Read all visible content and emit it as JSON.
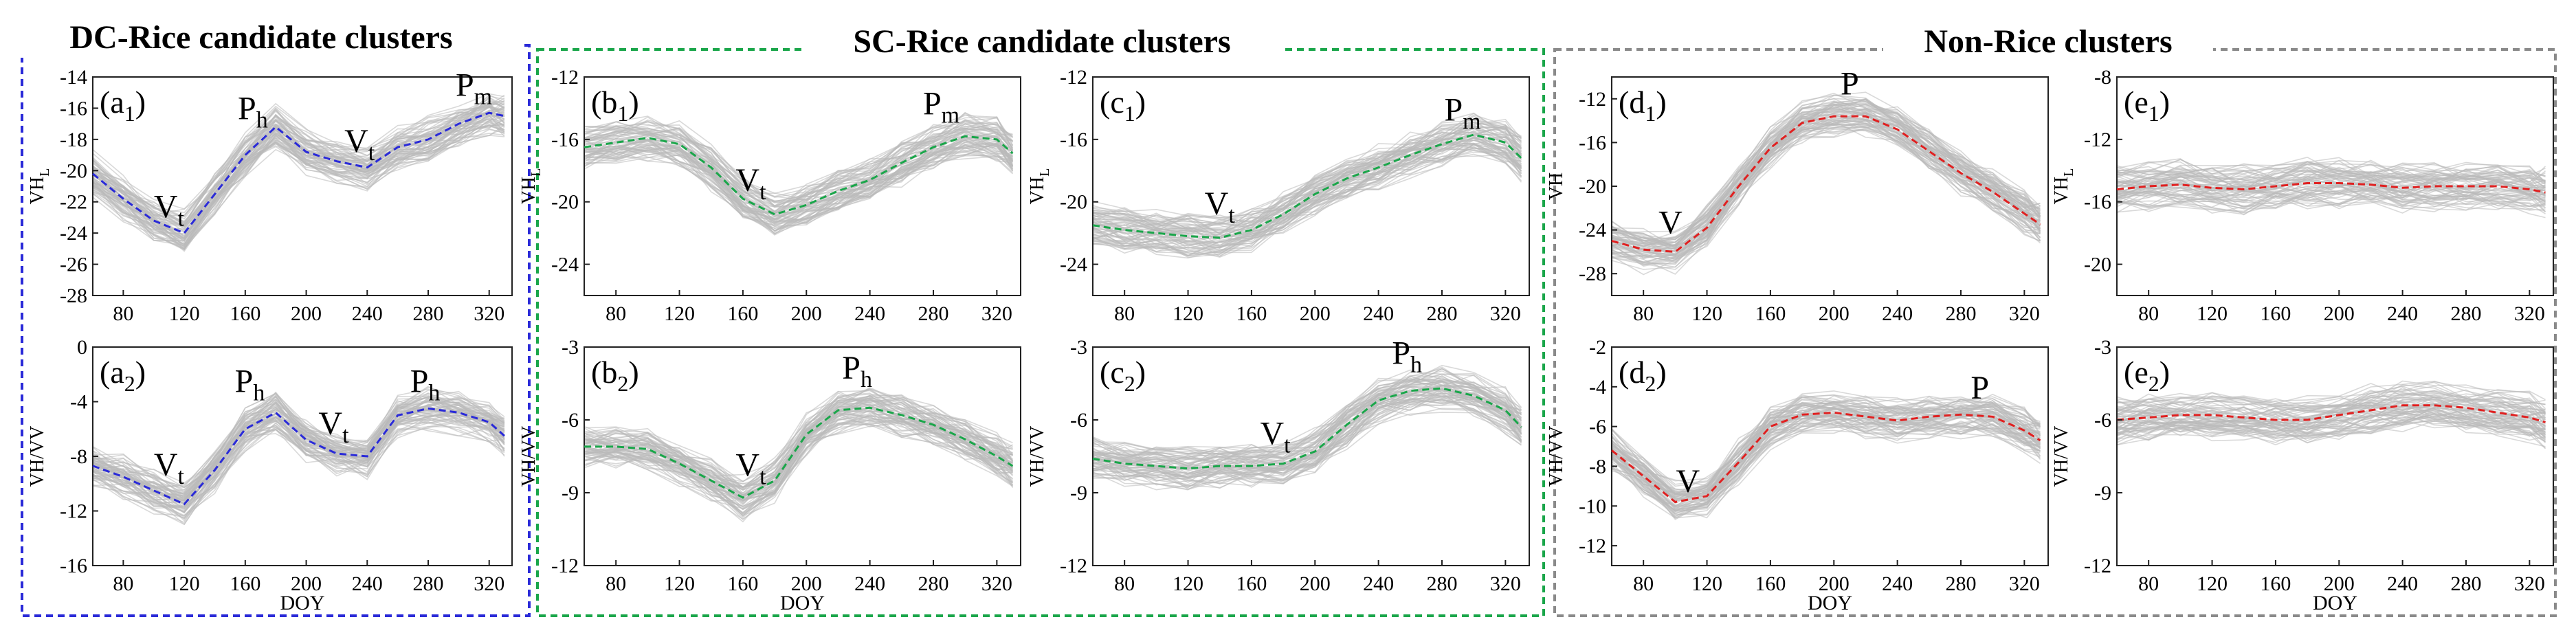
{
  "groups": [
    {
      "title": "DC-Rice candidate clusters",
      "color": "#2a2ad8"
    },
    {
      "title": "SC-Rice candidate clusters",
      "color": "#1aa64a"
    },
    {
      "title": "Non-Rice clusters",
      "color": "#8a8a8a"
    }
  ],
  "chart_data": [
    {
      "type": "line",
      "panel": "(a1)",
      "label_main": "(a",
      "label_sub": "1",
      "label_close": ")",
      "ylabel_main": "VH",
      "ylabel_sub": "L",
      "xlabel": "",
      "x": [
        60,
        80,
        100,
        120,
        140,
        160,
        180,
        200,
        220,
        240,
        260,
        280,
        300,
        320,
        330
      ],
      "xticks": [
        80,
        120,
        160,
        200,
        240,
        280,
        320
      ],
      "xlim": [
        60,
        335
      ],
      "ylim": [
        -28,
        -14
      ],
      "yticks": [
        -28,
        -26,
        -24,
        -22,
        -20,
        -18,
        -16,
        -14
      ],
      "series": [
        {
          "values": [
            -20.2,
            -21.8,
            -23.2,
            -24.0,
            -21.5,
            -19.0,
            -17.2,
            -18.8,
            -19.4,
            -19.8,
            -18.5,
            -18.0,
            -17.0,
            -16.3,
            -16.5
          ],
          "color": "#2a2ad8"
        }
      ],
      "annotations": [
        {
          "main": "V",
          "sub": "t",
          "x": 110,
          "y": -23.0
        },
        {
          "main": "P",
          "sub": "h",
          "x": 165,
          "y": -16.7
        },
        {
          "main": "V",
          "sub": "t",
          "x": 235,
          "y": -18.8
        },
        {
          "main": "P",
          "sub": "m",
          "x": 310,
          "y": -15.2
        }
      ]
    },
    {
      "type": "line",
      "panel": "(a2)",
      "label_main": "(a",
      "label_sub": "2",
      "label_close": ")",
      "ylabel_main": "VH/VV",
      "ylabel_sub": "",
      "xlabel": "DOY",
      "x": [
        60,
        80,
        100,
        120,
        140,
        160,
        180,
        200,
        220,
        240,
        260,
        280,
        300,
        320,
        330
      ],
      "xticks": [
        80,
        120,
        160,
        200,
        240,
        280,
        320
      ],
      "xlim": [
        60,
        335
      ],
      "ylim": [
        -16,
        0
      ],
      "yticks": [
        -16,
        -12,
        -8,
        -4,
        0
      ],
      "series": [
        {
          "values": [
            -8.7,
            -9.5,
            -10.5,
            -11.5,
            -9.0,
            -6.0,
            -4.8,
            -6.8,
            -7.8,
            -8.0,
            -5.0,
            -4.5,
            -4.8,
            -5.5,
            -6.5
          ],
          "color": "#2a2ad8"
        }
      ],
      "annotations": [
        {
          "main": "V",
          "sub": "t",
          "x": 110,
          "y": -9.4
        },
        {
          "main": "P",
          "sub": "h",
          "x": 163,
          "y": -3.3
        },
        {
          "main": "V",
          "sub": "t",
          "x": 218,
          "y": -6.4
        },
        {
          "main": "P",
          "sub": "h",
          "x": 278,
          "y": -3.3
        }
      ]
    },
    {
      "type": "line",
      "panel": "(b1)",
      "label_main": "(b",
      "label_sub": "1",
      "label_close": ")",
      "ylabel_main": "VH",
      "ylabel_sub": "L",
      "xlabel": "",
      "x": [
        60,
        80,
        100,
        120,
        140,
        160,
        180,
        200,
        220,
        240,
        260,
        280,
        300,
        320,
        330
      ],
      "xticks": [
        80,
        120,
        160,
        200,
        240,
        280,
        320
      ],
      "xlim": [
        60,
        335
      ],
      "ylim": [
        -26,
        -12
      ],
      "yticks": [
        -24,
        -20,
        -16,
        -12
      ],
      "series": [
        {
          "values": [
            -16.5,
            -16.2,
            -15.9,
            -16.3,
            -17.8,
            -19.8,
            -20.8,
            -20.2,
            -19.3,
            -18.6,
            -17.5,
            -16.5,
            -15.8,
            -16.0,
            -16.9
          ],
          "color": "#1aa64a"
        }
      ],
      "annotations": [
        {
          "main": "V",
          "sub": "t",
          "x": 165,
          "y": -19.3
        },
        {
          "main": "P",
          "sub": "m",
          "x": 285,
          "y": -14.4
        }
      ]
    },
    {
      "type": "line",
      "panel": "(c1)",
      "label_main": "(c",
      "label_sub": "1",
      "label_close": ")",
      "ylabel_main": "VH",
      "ylabel_sub": "L",
      "xlabel": "",
      "x": [
        60,
        80,
        100,
        120,
        140,
        160,
        180,
        200,
        220,
        240,
        260,
        280,
        300,
        320,
        330
      ],
      "xticks": [
        80,
        120,
        160,
        200,
        240,
        280,
        320
      ],
      "xlim": [
        60,
        335
      ],
      "ylim": [
        -26,
        -12
      ],
      "yticks": [
        -24,
        -20,
        -16,
        -12
      ],
      "series": [
        {
          "values": [
            -21.5,
            -21.8,
            -22.0,
            -22.2,
            -22.3,
            -21.8,
            -20.8,
            -19.5,
            -18.5,
            -17.8,
            -17.0,
            -16.3,
            -15.7,
            -16.2,
            -17.2
          ],
          "color": "#1aa64a"
        }
      ],
      "annotations": [
        {
          "main": "V",
          "sub": "t",
          "x": 140,
          "y": -20.8
        },
        {
          "main": "P",
          "sub": "m",
          "x": 293,
          "y": -14.8
        }
      ]
    },
    {
      "type": "line",
      "panel": "(b2)",
      "label_main": "(b",
      "label_sub": "2",
      "label_close": ")",
      "ylabel_main": "VH/VV",
      "ylabel_sub": "",
      "xlabel": "DOY",
      "x": [
        60,
        80,
        100,
        120,
        140,
        160,
        180,
        200,
        220,
        240,
        260,
        280,
        300,
        320,
        330
      ],
      "xticks": [
        80,
        120,
        160,
        200,
        240,
        280,
        320
      ],
      "xlim": [
        60,
        335
      ],
      "ylim": [
        -12,
        -3
      ],
      "yticks": [
        -12,
        -9,
        -6,
        -3
      ],
      "series": [
        {
          "values": [
            -7.1,
            -7.1,
            -7.2,
            -7.8,
            -8.5,
            -9.2,
            -8.5,
            -6.6,
            -5.6,
            -5.5,
            -5.8,
            -6.2,
            -6.8,
            -7.5,
            -7.9
          ],
          "color": "#1aa64a"
        }
      ],
      "annotations": [
        {
          "main": "V",
          "sub": "t",
          "x": 165,
          "y": -8.3
        },
        {
          "main": "P",
          "sub": "h",
          "x": 232,
          "y": -4.3
        }
      ]
    },
    {
      "type": "line",
      "panel": "(c2)",
      "label_main": "(c",
      "label_sub": "2",
      "label_close": ")",
      "ylabel_main": "VH/VV",
      "ylabel_sub": "",
      "xlabel": "",
      "x": [
        60,
        80,
        100,
        120,
        140,
        160,
        180,
        200,
        220,
        240,
        260,
        280,
        300,
        320,
        330
      ],
      "xticks": [
        80,
        120,
        160,
        200,
        240,
        280,
        320
      ],
      "xlim": [
        60,
        335
      ],
      "ylim": [
        -12,
        -3
      ],
      "yticks": [
        -12,
        -9,
        -6,
        -3
      ],
      "series": [
        {
          "values": [
            -7.6,
            -7.8,
            -7.9,
            -8.0,
            -7.9,
            -7.9,
            -7.8,
            -7.3,
            -6.2,
            -5.2,
            -4.8,
            -4.7,
            -5.0,
            -5.6,
            -6.3
          ],
          "color": "#1aa64a"
        }
      ],
      "annotations": [
        {
          "main": "V",
          "sub": "t",
          "x": 175,
          "y": -7.0
        },
        {
          "main": "P",
          "sub": "h",
          "x": 258,
          "y": -3.7
        }
      ]
    },
    {
      "type": "line",
      "panel": "(d1)",
      "label_main": "(d",
      "label_sub": "1",
      "label_close": ")",
      "ylabel_main": "VH",
      "ylabel_sub": "",
      "xlabel": "",
      "x": [
        60,
        80,
        100,
        120,
        140,
        160,
        180,
        200,
        220,
        240,
        260,
        280,
        300,
        320,
        330
      ],
      "xticks": [
        80,
        120,
        160,
        200,
        240,
        280,
        320
      ],
      "xlim": [
        60,
        335
      ],
      "ylim": [
        -30,
        -10
      ],
      "yticks": [
        -28,
        -24,
        -20,
        -16,
        -12
      ],
      "series": [
        {
          "values": [
            -25.0,
            -25.8,
            -26.0,
            -23.8,
            -20.0,
            -16.5,
            -14.2,
            -13.6,
            -13.6,
            -14.8,
            -16.8,
            -18.8,
            -20.5,
            -22.5,
            -23.5
          ],
          "color": "#e02020"
        }
      ],
      "annotations": [
        {
          "main": "V",
          "sub": "",
          "x": 97,
          "y": -24.3
        },
        {
          "main": "P",
          "sub": "",
          "x": 210,
          "y": -11.6
        }
      ]
    },
    {
      "type": "line",
      "panel": "(e1)",
      "label_main": "(e",
      "label_sub": "1",
      "label_close": ")",
      "ylabel_main": "VH",
      "ylabel_sub": "L",
      "xlabel": "",
      "x": [
        60,
        80,
        100,
        120,
        140,
        160,
        180,
        200,
        220,
        240,
        260,
        280,
        300,
        320,
        330
      ],
      "xticks": [
        80,
        120,
        160,
        200,
        240,
        280,
        320
      ],
      "xlim": [
        60,
        335
      ],
      "ylim": [
        -22,
        -8
      ],
      "yticks": [
        -20,
        -16,
        -12,
        -8
      ],
      "series": [
        {
          "values": [
            -15.2,
            -15.0,
            -14.9,
            -15.1,
            -15.2,
            -15.0,
            -14.8,
            -14.8,
            -14.9,
            -15.1,
            -15.0,
            -15.0,
            -15.0,
            -15.2,
            -15.4
          ],
          "color": "#e02020"
        }
      ],
      "annotations": []
    },
    {
      "type": "line",
      "panel": "(d2)",
      "label_main": "(d",
      "label_sub": "2",
      "label_close": ")",
      "ylabel_main": "VH/VV",
      "ylabel_sub": "",
      "xlabel": "DOY",
      "x": [
        60,
        80,
        100,
        120,
        140,
        160,
        180,
        200,
        220,
        240,
        260,
        280,
        300,
        320,
        330
      ],
      "xticks": [
        80,
        120,
        160,
        200,
        240,
        280,
        320
      ],
      "xlim": [
        60,
        335
      ],
      "ylim": [
        -13,
        -2
      ],
      "yticks": [
        -12,
        -10,
        -8,
        -6,
        -4,
        -2
      ],
      "series": [
        {
          "values": [
            -7.2,
            -8.5,
            -9.8,
            -9.5,
            -7.8,
            -6.0,
            -5.4,
            -5.3,
            -5.5,
            -5.7,
            -5.5,
            -5.4,
            -5.5,
            -6.2,
            -6.7
          ],
          "color": "#e02020"
        }
      ],
      "annotations": [
        {
          "main": "V",
          "sub": "",
          "x": 108,
          "y": -9.3
        },
        {
          "main": "P",
          "sub": "",
          "x": 292,
          "y": -4.6
        }
      ]
    },
    {
      "type": "line",
      "panel": "(e2)",
      "label_main": "(e",
      "label_sub": "2",
      "label_close": ")",
      "ylabel_main": "VH/VV",
      "ylabel_sub": "",
      "xlabel": "DOY",
      "x": [
        60,
        80,
        100,
        120,
        140,
        160,
        180,
        200,
        220,
        240,
        260,
        280,
        300,
        320,
        330
      ],
      "xticks": [
        80,
        120,
        160,
        200,
        240,
        280,
        320
      ],
      "xlim": [
        60,
        335
      ],
      "ylim": [
        -12,
        -3
      ],
      "yticks": [
        -12,
        -9,
        -6,
        -3
      ],
      "series": [
        {
          "values": [
            -6.0,
            -5.9,
            -5.8,
            -5.8,
            -5.9,
            -6.0,
            -6.0,
            -5.8,
            -5.6,
            -5.4,
            -5.4,
            -5.5,
            -5.7,
            -5.9,
            -6.1
          ],
          "color": "#e02020"
        }
      ],
      "annotations": []
    }
  ]
}
